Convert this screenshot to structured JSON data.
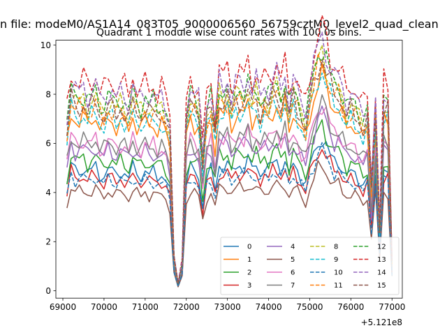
{
  "figure": {
    "suptitle": "n file: modeM0/AS1A14_083T05_9000006560_56759cztM0_level2_quad_clean"
  },
  "chart_data": {
    "type": "line",
    "title": "Quadrant 1 module wise count rates with 100.0s bins.",
    "xlabel": "",
    "ylabel": "",
    "x_offset_label": "+5.121e8",
    "xlim": [
      68830,
      77250
    ],
    "ylim": [
      -0.3,
      10.2
    ],
    "xticks": [
      69000,
      70000,
      71000,
      72000,
      73000,
      74000,
      75000,
      76000,
      77000
    ],
    "xtick_labels": [
      "69000",
      "70000",
      "71000",
      "72000",
      "73000",
      "74000",
      "75000",
      "76000",
      "77000"
    ],
    "yticks": [
      0,
      2,
      4,
      6,
      8,
      10
    ],
    "ytick_labels": [
      "0",
      "2",
      "4",
      "6",
      "8",
      "10"
    ],
    "grid": false,
    "legend": {
      "location": "lower-right",
      "ncol": 4
    },
    "x": [
      69100,
      69200,
      69300,
      69400,
      69500,
      69600,
      69700,
      69800,
      69900,
      70000,
      70100,
      70200,
      70300,
      70400,
      70500,
      70600,
      70700,
      70800,
      70900,
      71000,
      71100,
      71200,
      71300,
      71400,
      71500,
      71600,
      71700,
      71800,
      71900,
      72000,
      72100,
      72200,
      72300,
      72400,
      72500,
      72600,
      72700,
      72800,
      72900,
      73000,
      73100,
      73200,
      73300,
      73400,
      73500,
      73600,
      73700,
      73800,
      73900,
      74000,
      74100,
      74200,
      74300,
      74400,
      74500,
      74600,
      74700,
      74800,
      74900,
      75000,
      75100,
      75200,
      75300,
      75400,
      75500,
      75600,
      75700,
      75800,
      75900,
      76000,
      76100,
      76200,
      76300,
      76400,
      76500,
      76600,
      76700,
      76800,
      76900,
      77000
    ],
    "shape": [
      0.88,
      1.07,
      1.02,
      1.02,
      1.04,
      1.0,
      1.02,
      1.05,
      0.99,
      0.97,
      1.03,
      1.01,
      0.98,
      1.02,
      0.99,
      0.96,
      1.04,
      1.0,
      0.97,
      1.02,
      0.98,
      1.0,
      0.97,
      0.99,
      0.95,
      0.85,
      0.18,
      0.04,
      0.15,
      0.93,
      1.03,
      1.01,
      0.97,
      0.72,
      0.97,
      1.01,
      0.86,
      1.07,
      1.05,
      1.08,
      0.99,
      1.05,
      1.07,
      1.05,
      1.1,
      1.03,
      1.06,
      1.0,
      1.05,
      1.02,
      1.08,
      1.1,
      1.04,
      1.1,
      0.97,
      1.07,
      1.02,
      0.96,
      0.9,
      1.05,
      1.15,
      1.25,
      1.3,
      1.22,
      1.14,
      1.09,
      1.1,
      1.03,
      0.97,
      1.0,
      0.98,
      0.95,
      0.9,
      0.96,
      0.55,
      0.98,
      0.33,
      1.02,
      1.0,
      0.15
    ],
    "series": [
      {
        "name": "0",
        "base": 4.8,
        "color": "#1f77b4",
        "dash": "solid"
      },
      {
        "name": "1",
        "base": 6.8,
        "color": "#ff7f0e",
        "dash": "solid"
      },
      {
        "name": "2",
        "base": 5.2,
        "color": "#2ca02c",
        "dash": "solid"
      },
      {
        "name": "3",
        "base": 4.5,
        "color": "#d62728",
        "dash": "solid"
      },
      {
        "name": "4",
        "base": 5.6,
        "color": "#9467bd",
        "dash": "solid"
      },
      {
        "name": "5",
        "base": 3.95,
        "color": "#8c564b",
        "dash": "solid"
      },
      {
        "name": "6",
        "base": 5.9,
        "color": "#e377c2",
        "dash": "solid"
      },
      {
        "name": "7",
        "base": 5.9,
        "color": "#7f7f7f",
        "dash": "solid"
      },
      {
        "name": "8",
        "base": 7.5,
        "color": "#bcbd22",
        "dash": "dashed"
      },
      {
        "name": "9",
        "base": 6.9,
        "color": "#17becf",
        "dash": "dashed"
      },
      {
        "name": "10",
        "base": 4.45,
        "color": "#1f77b4",
        "dash": "dashed"
      },
      {
        "name": "11",
        "base": 7.2,
        "color": "#ff7f0e",
        "dash": "dashed"
      },
      {
        "name": "12",
        "base": 7.7,
        "color": "#2ca02c",
        "dash": "dashed"
      },
      {
        "name": "13",
        "base": 8.35,
        "color": "#d62728",
        "dash": "dashed"
      },
      {
        "name": "14",
        "base": 7.95,
        "color": "#9467bd",
        "dash": "dashed"
      },
      {
        "name": "15",
        "base": 7.3,
        "color": "#8c564b",
        "dash": "dashed"
      }
    ]
  }
}
